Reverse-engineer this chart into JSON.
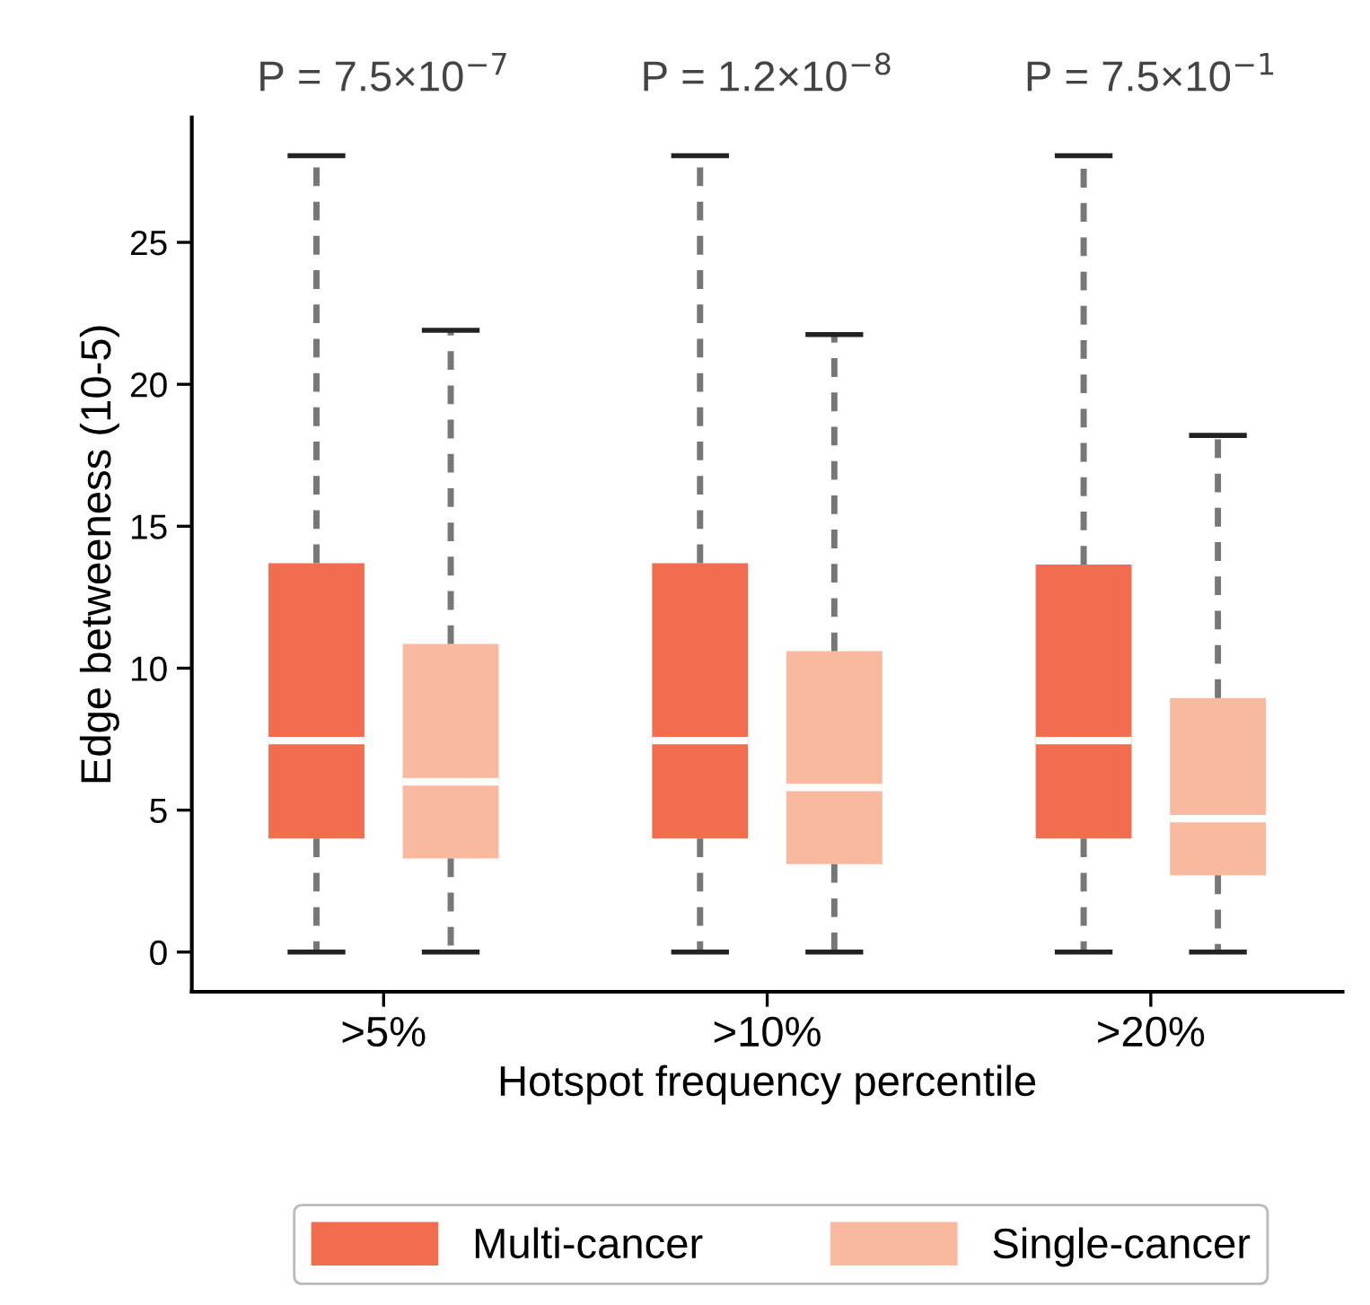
{
  "chart_data": {
    "type": "box",
    "categories": [
      ">5%",
      ">10%",
      ">20%"
    ],
    "xlabel": "Hotspot frequency percentile",
    "ylabel": "Edge betweeness (10-5)",
    "ylim": [
      -1.4,
      29.4
    ],
    "yticks": [
      0,
      5,
      10,
      15,
      20,
      25
    ],
    "grid": false,
    "legend": "bottom",
    "line_style": "dashed",
    "annotations": [
      "P = 7.5×10$^{−7}$",
      "P = 1.2×10$^{−8}$",
      "P = 7.5×10$^{−1}$"
    ],
    "series": [
      {
        "name": "Multi-cancer",
        "color": "#f26c4f",
        "boxes": [
          {
            "low": 0,
            "q1": 4.0,
            "median": 7.45,
            "q3": 13.7,
            "high": 28.05
          },
          {
            "low": 0,
            "q1": 4.0,
            "median": 7.45,
            "q3": 13.7,
            "high": 28.05
          },
          {
            "low": 0,
            "q1": 4.0,
            "median": 7.45,
            "q3": 13.65,
            "high": 28.05
          }
        ]
      },
      {
        "name": "Single-cancer",
        "color": "#f8b99f",
        "boxes": [
          {
            "low": 0,
            "q1": 3.3,
            "median": 6.0,
            "q3": 10.85,
            "high": 21.9
          },
          {
            "low": 0,
            "q1": 3.1,
            "median": 5.8,
            "q3": 10.6,
            "high": 21.75
          },
          {
            "low": 0,
            "q1": 2.7,
            "median": 4.7,
            "q3": 8.95,
            "high": 18.2
          }
        ]
      }
    ]
  }
}
